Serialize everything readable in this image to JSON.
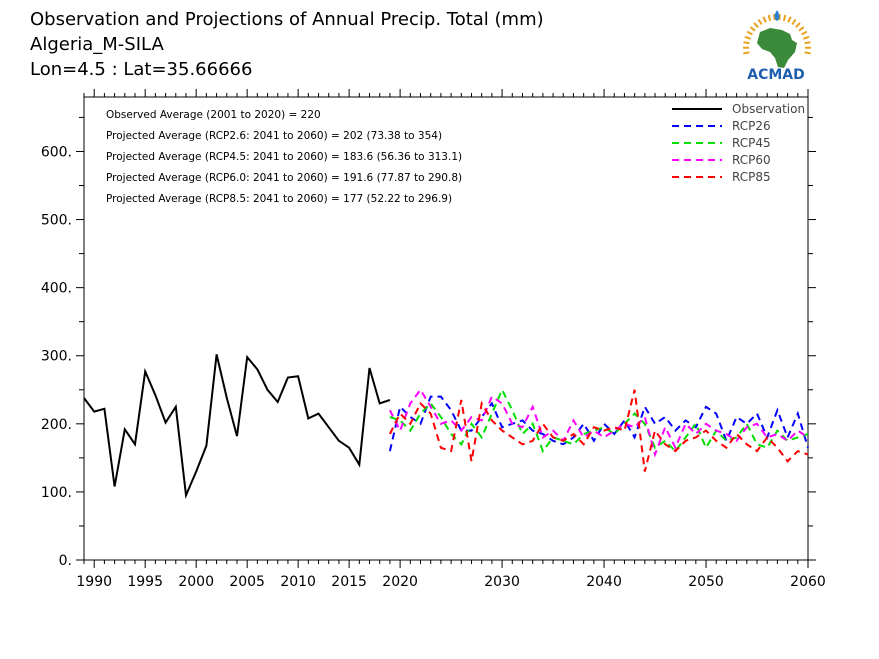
{
  "header": {
    "title": "Observation and Projections of Annual Precip. Total (mm)",
    "location": "Algeria_M-SILA",
    "coords": "Lon=4.5 : Lat=35.66666"
  },
  "logo": {
    "text": "ACMAD",
    "colors": {
      "africa": "#3a8a3a",
      "rays": "#e8a020",
      "text": "#1f5fb0",
      "drop": "#2a7fd0"
    }
  },
  "stats": [
    "Observed Average (2001 to 2020) = 220",
    "Projected Average (RCP2.6: 2041 to 2060) = 202 (73.38 to 354)",
    "Projected Average (RCP4.5: 2041 to 2060) = 183.6 (56.36 to 313.1)",
    "Projected Average (RCP6.0: 2041 to 2060) = 191.6 (77.87 to 290.8)",
    "Projected Average (RCP8.5: 2041 to 2060) = 177 (52.22 to 296.9)"
  ],
  "chart_data": {
    "type": "line",
    "xlim": [
      1989,
      2060
    ],
    "ylim": [
      0,
      680
    ],
    "x_ticks": [
      {
        "v": 1990,
        "label": "1990"
      },
      {
        "v": 1995,
        "label": "1995"
      },
      {
        "v": 2000,
        "label": "2000"
      },
      {
        "v": 2005,
        "label": "2005"
      },
      {
        "v": 2010,
        "label": "2010"
      },
      {
        "v": 2015,
        "label": "2015"
      },
      {
        "v": 2020,
        "label": "2020"
      },
      {
        "v": 2030,
        "label": "2030"
      },
      {
        "v": 2040,
        "label": "2040"
      },
      {
        "v": 2050,
        "label": "2050"
      },
      {
        "v": 2060,
        "label": "2060"
      }
    ],
    "y_ticks": [
      {
        "v": 0,
        "label": "0."
      },
      {
        "v": 100,
        "label": "100."
      },
      {
        "v": 200,
        "label": "200."
      },
      {
        "v": 300,
        "label": "300."
      },
      {
        "v": 400,
        "label": "400."
      },
      {
        "v": 500,
        "label": "500."
      },
      {
        "v": 600,
        "label": "600."
      }
    ],
    "legend_position": "top-right",
    "series": [
      {
        "name": "Observation",
        "color": "#000000",
        "dashed": false,
        "x": [
          1989,
          1990,
          1991,
          1992,
          1993,
          1994,
          1995,
          1996,
          1997,
          1998,
          1999,
          2000,
          2001,
          2002,
          2003,
          2004,
          2005,
          2006,
          2007,
          2008,
          2009,
          2010,
          2011,
          2012,
          2013,
          2014,
          2015,
          2016,
          2017,
          2018,
          2019
        ],
        "y": [
          238,
          218,
          222,
          108,
          192,
          170,
          277,
          242,
          202,
          225,
          95,
          130,
          168,
          302,
          238,
          182,
          298,
          280,
          250,
          232,
          268,
          270,
          208,
          215,
          195,
          175,
          165,
          140,
          282,
          230,
          235
        ]
      },
      {
        "name": "RCP26",
        "color": "#0000ff",
        "dashed": true,
        "x": [
          2019,
          2020,
          2021,
          2022,
          2023,
          2024,
          2025,
          2026,
          2027,
          2028,
          2029,
          2030,
          2031,
          2032,
          2033,
          2034,
          2035,
          2036,
          2037,
          2038,
          2039,
          2040,
          2041,
          2042,
          2043,
          2044,
          2045,
          2046,
          2047,
          2048,
          2049,
          2050,
          2051,
          2052,
          2053,
          2054,
          2055,
          2056,
          2057,
          2058,
          2059,
          2060
        ],
        "y": [
          160,
          225,
          210,
          200,
          240,
          240,
          220,
          190,
          190,
          210,
          230,
          195,
          200,
          205,
          190,
          185,
          175,
          170,
          180,
          200,
          175,
          200,
          185,
          205,
          180,
          225,
          200,
          210,
          190,
          205,
          195,
          225,
          215,
          175,
          210,
          200,
          215,
          180,
          220,
          180,
          215,
          165
        ]
      },
      {
        "name": "RCP45",
        "color": "#00e000",
        "dashed": true,
        "x": [
          2019,
          2020,
          2021,
          2022,
          2023,
          2024,
          2025,
          2026,
          2027,
          2028,
          2029,
          2030,
          2031,
          2032,
          2033,
          2034,
          2035,
          2036,
          2037,
          2038,
          2039,
          2040,
          2041,
          2042,
          2043,
          2044,
          2045,
          2046,
          2047,
          2048,
          2049,
          2050,
          2051,
          2052,
          2053,
          2054,
          2055,
          2056,
          2057,
          2058,
          2059,
          2060
        ],
        "y": [
          210,
          205,
          190,
          215,
          230,
          210,
          185,
          170,
          200,
          180,
          215,
          250,
          220,
          185,
          200,
          160,
          180,
          175,
          170,
          185,
          190,
          195,
          185,
          200,
          215,
          200,
          165,
          175,
          160,
          180,
          200,
          165,
          190,
          175,
          180,
          200,
          170,
          165,
          190,
          175,
          180,
          185
        ]
      },
      {
        "name": "RCP60",
        "color": "#ff00ff",
        "dashed": true,
        "x": [
          2019,
          2020,
          2021,
          2022,
          2023,
          2024,
          2025,
          2026,
          2027,
          2028,
          2029,
          2030,
          2031,
          2032,
          2033,
          2034,
          2035,
          2036,
          2037,
          2038,
          2039,
          2040,
          2041,
          2042,
          2043,
          2044,
          2045,
          2046,
          2047,
          2048,
          2049,
          2050,
          2051,
          2052,
          2053,
          2054,
          2055,
          2056,
          2057,
          2058,
          2059,
          2060
        ],
        "y": [
          220,
          190,
          230,
          250,
          225,
          200,
          205,
          190,
          210,
          205,
          240,
          230,
          200,
          195,
          225,
          180,
          190,
          175,
          205,
          180,
          190,
          180,
          190,
          200,
          195,
          210,
          155,
          195,
          165,
          200,
          185,
          200,
          190,
          185,
          175,
          195,
          200,
          180,
          185,
          175,
          190,
          180
        ]
      },
      {
        "name": "RCP85",
        "color": "#ff0000",
        "dashed": true,
        "x": [
          2019,
          2020,
          2021,
          2022,
          2023,
          2024,
          2025,
          2026,
          2027,
          2028,
          2029,
          2030,
          2031,
          2032,
          2033,
          2034,
          2035,
          2036,
          2037,
          2038,
          2039,
          2040,
          2041,
          2042,
          2043,
          2044,
          2045,
          2046,
          2047,
          2048,
          2049,
          2050,
          2051,
          2052,
          2053,
          2054,
          2055,
          2056,
          2057,
          2058,
          2059,
          2060
        ],
        "y": [
          185,
          215,
          200,
          230,
          215,
          165,
          160,
          235,
          145,
          230,
          205,
          190,
          180,
          170,
          175,
          200,
          180,
          175,
          185,
          170,
          195,
          190,
          195,
          190,
          250,
          130,
          190,
          170,
          160,
          175,
          180,
          190,
          175,
          165,
          185,
          170,
          160,
          180,
          165,
          145,
          160,
          155
        ]
      }
    ]
  }
}
